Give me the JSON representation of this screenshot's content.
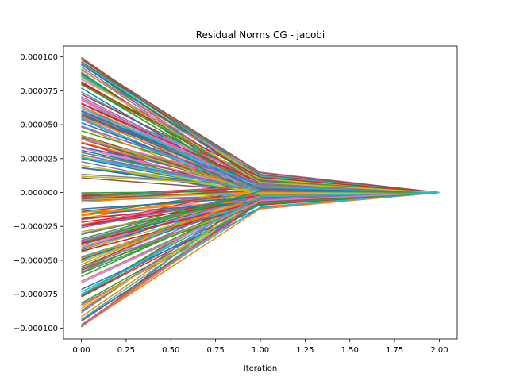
{
  "chart_data": {
    "type": "line",
    "title": "Residual Norms CG - jacobi",
    "xlabel": "Iteration",
    "ylabel": "",
    "xlim": [
      -0.1,
      2.1
    ],
    "ylim": [
      -0.000108,
      0.000108
    ],
    "x": [
      0,
      1,
      2
    ],
    "x_ticks": [
      0.0,
      0.25,
      0.5,
      0.75,
      1.0,
      1.25,
      1.5,
      1.75,
      2.0
    ],
    "x_tick_labels": [
      "0.00",
      "0.25",
      "0.50",
      "0.75",
      "1.00",
      "1.25",
      "1.50",
      "1.75",
      "2.00"
    ],
    "y_ticks": [
      0.0001,
      7.5e-05,
      5e-05,
      2.5e-05,
      0,
      -2.5e-05,
      -5e-05,
      -7.5e-05,
      -0.0001
    ],
    "y_tick_labels": [
      "0.000100",
      "0.000075",
      "0.000050",
      "0.000025",
      "0.000000",
      "−0.000025",
      "−0.000050",
      "−0.000075",
      "−0.000100"
    ],
    "grid": false,
    "legend": "none",
    "series_count": 200,
    "start_range": [
      -0.0001,
      0.0001
    ],
    "iter1_range": [
      -1.2e-05,
      1.5e-05
    ],
    "end_value": 0,
    "palette": [
      "#1f77b4",
      "#ff7f0e",
      "#2ca02c",
      "#d62728",
      "#9467bd",
      "#8c564b",
      "#e377c2",
      "#7f7f7f",
      "#bcbd22",
      "#17becf"
    ]
  }
}
